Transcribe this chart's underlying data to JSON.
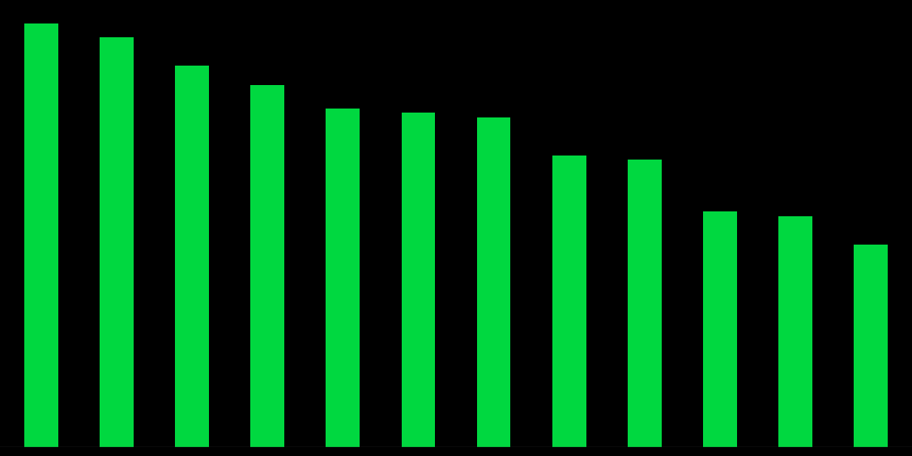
{
  "values": [
    90,
    87,
    81,
    77,
    72,
    71,
    70,
    62,
    61,
    50,
    49,
    43
  ],
  "bar_color": "#00D840",
  "background_color": "#000000",
  "bar_edge_color": "#000000",
  "ylim": [
    0,
    95
  ],
  "bar_width": 0.45,
  "figsize": [
    11.26,
    5.63
  ],
  "dpi": 100
}
